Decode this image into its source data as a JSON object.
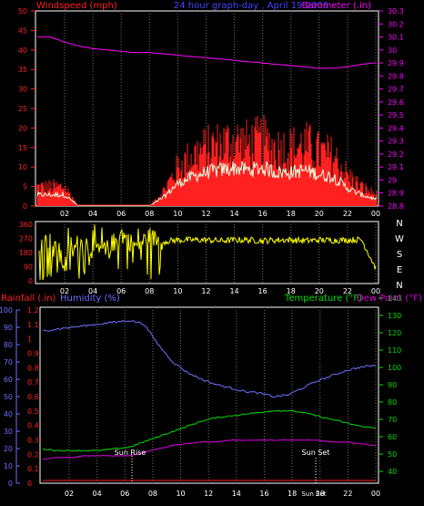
{
  "colors": {
    "background": "#000000",
    "frame": "#ffffff",
    "grid": "#707070",
    "wind": "#ff2020",
    "wind_avg": "#e0ffe0",
    "barometer": "#ff00ff",
    "direction": "#ffff00",
    "humidity": "#7070ff",
    "temperature": "#00dd00",
    "dewpoint": "#dd00dd",
    "rainfall": "#ff2020"
  },
  "top": {
    "label_wind": "Windspeed (mph)",
    "label_title": "24 hour graph-day , April 19 2006",
    "label_baro": "Barometer (.in)",
    "left_ticks": [
      "0",
      "5",
      "10",
      "15",
      "20",
      "25",
      "30",
      "35",
      "40",
      "45",
      "50"
    ],
    "right_ticks": [
      "28.8",
      "28.9",
      "29",
      "29.1",
      "29.2",
      "29.3",
      "29.4",
      "29.5",
      "29.6",
      "29.7",
      "29.8",
      "29.9",
      "30",
      "30.1",
      "30.2",
      "30.3"
    ],
    "x_ticks": [
      "02",
      "04",
      "06",
      "08",
      "10",
      "12",
      "14",
      "16",
      "18",
      "20",
      "22",
      "00"
    ]
  },
  "mid": {
    "left_ticks": [
      "0",
      "90",
      "180",
      "270",
      "360"
    ],
    "compass": [
      "N",
      "W",
      "S",
      "E",
      "N"
    ],
    "x_ticks": [
      "02",
      "04",
      "06",
      "08",
      "10",
      "12",
      "14",
      "16",
      "18",
      "20",
      "22",
      "00"
    ]
  },
  "bottom": {
    "label_rain": "Rainfall (.in)",
    "label_humidity": "Humidity (%)",
    "label_temp": "Temperature (°F)",
    "label_dew": "Dew Point (°F)",
    "left_rain_ticks": [
      "0",
      "0.1",
      "0.2",
      "0.3",
      "0.4",
      "0.5",
      "0.6",
      "0.7",
      "0.8",
      "0.9",
      "1",
      "1.1",
      "1.2"
    ],
    "left_hum_ticks": [
      "0",
      "10",
      "20",
      "30",
      "40",
      "50",
      "60",
      "70",
      "80",
      "90",
      "100"
    ],
    "right_ticks": [
      "40",
      "50",
      "60",
      "70",
      "80",
      "90",
      "100",
      "110",
      "120",
      "130",
      "140"
    ],
    "x_ticks": [
      "02",
      "04",
      "06",
      "08",
      "10",
      "12",
      "14",
      "16",
      "18",
      "20",
      "22",
      "00"
    ],
    "sunrise": "Sun Rise",
    "sunset": "Sun Set",
    "sunset_under": "Sun Set"
  },
  "chart_data": [
    {
      "type": "line",
      "ylabel": "Windspeed (mph)",
      "y2label": "Barometer (.in)",
      "ylim": [
        0,
        50
      ],
      "y2lim": [
        28.8,
        30.3
      ],
      "x": [
        1,
        2,
        3,
        4,
        5,
        6,
        7,
        8,
        9,
        10,
        11,
        12,
        13,
        14,
        15,
        16,
        17,
        18,
        19,
        20,
        21,
        22,
        23,
        24
      ],
      "series": [
        {
          "name": "Windspeed (mph)",
          "values": [
            5,
            5,
            0,
            0,
            0,
            0,
            0,
            0,
            4,
            10,
            13,
            15,
            16,
            17,
            16,
            17,
            15,
            15,
            16,
            14,
            13,
            8,
            5,
            3
          ]
        },
        {
          "name": "Barometer (.in)",
          "values": [
            30.1,
            30.06,
            30.03,
            30.01,
            30,
            29.99,
            29.98,
            29.98,
            29.97,
            29.96,
            29.95,
            29.94,
            29.93,
            29.92,
            29.91,
            29.9,
            29.89,
            29.88,
            29.87,
            29.86,
            29.86,
            29.87,
            29.89,
            29.9
          ]
        }
      ]
    },
    {
      "type": "line",
      "ylabel": "",
      "ylim": [
        0,
        360
      ],
      "x": [
        1,
        2,
        3,
        4,
        5,
        6,
        7,
        8,
        9,
        10,
        11,
        12,
        13,
        14,
        15,
        16,
        17,
        18,
        19,
        20,
        21,
        22,
        23,
        24
      ],
      "series": [
        {
          "values": [
            250,
            100,
            250,
            200,
            200,
            300,
            220,
            280,
            250,
            260,
            260,
            260,
            255,
            260,
            260,
            255,
            260,
            260,
            255,
            260,
            258,
            260,
            262,
            80
          ]
        }
      ]
    },
    {
      "type": "line",
      "ylabel": "Humidity (%)",
      "y2label": "Temperature (°F)",
      "ylim": [
        0,
        100
      ],
      "y2lim": [
        40,
        140
      ],
      "x": [
        1,
        2,
        3,
        4,
        5,
        6,
        7,
        8,
        9,
        10,
        11,
        12,
        13,
        14,
        15,
        16,
        17,
        18,
        19,
        20,
        21,
        22,
        23,
        24
      ],
      "series": [
        {
          "name": "Humidity (%)",
          "values": [
            88,
            89,
            90,
            91,
            92,
            93,
            94,
            92,
            80,
            70,
            64,
            60,
            57,
            55,
            53,
            52,
            50,
            51,
            55,
            59,
            62,
            65,
            67,
            68
          ]
        },
        {
          "name": "Temperature (°F)",
          "values": [
            53,
            52,
            52,
            52,
            52,
            53,
            54,
            57,
            60,
            63,
            66,
            69,
            71,
            72,
            73,
            74,
            75,
            75,
            74,
            72,
            70,
            68,
            66,
            65
          ]
        },
        {
          "name": "Dew Point (°F)",
          "values": [
            47,
            48,
            48,
            49,
            49,
            49,
            49,
            51,
            53,
            55,
            56,
            57,
            57,
            58,
            58,
            58,
            58,
            58,
            58,
            58,
            57,
            57,
            56,
            55
          ]
        },
        {
          "name": "Rainfall (.in)",
          "values": [
            0,
            0,
            0,
            0,
            0,
            0,
            0,
            0,
            0,
            0,
            0,
            0,
            0,
            0,
            0,
            0,
            0,
            0,
            0,
            0,
            0,
            0,
            0,
            0
          ]
        }
      ]
    }
  ]
}
